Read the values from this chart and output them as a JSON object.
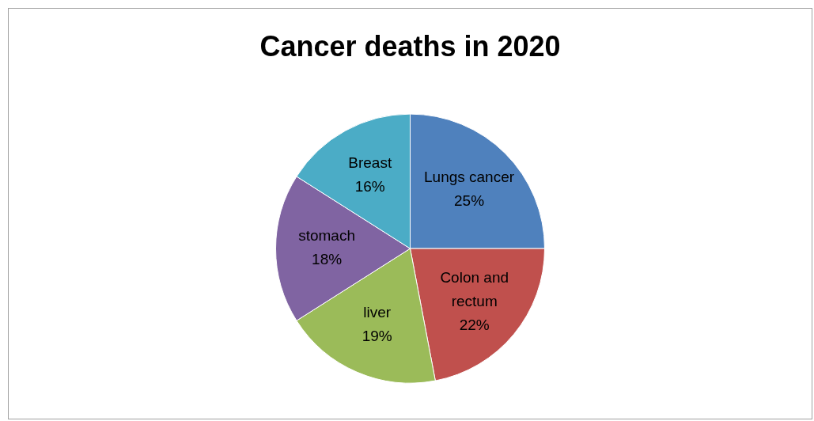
{
  "chart_data": {
    "type": "pie",
    "title": "Cancer deaths in 2020",
    "categories": [
      "Lungs cancer",
      "Colon and rectum",
      "liver",
      "stomach",
      "Breast"
    ],
    "values": [
      25,
      22,
      19,
      18,
      16
    ],
    "value_labels": [
      "25%",
      "22%",
      "19%",
      "18%",
      "16%"
    ],
    "colors": [
      "#4f81bd",
      "#c0504d",
      "#9bbb59",
      "#8064a2",
      "#4bacc6"
    ],
    "legend": false
  }
}
